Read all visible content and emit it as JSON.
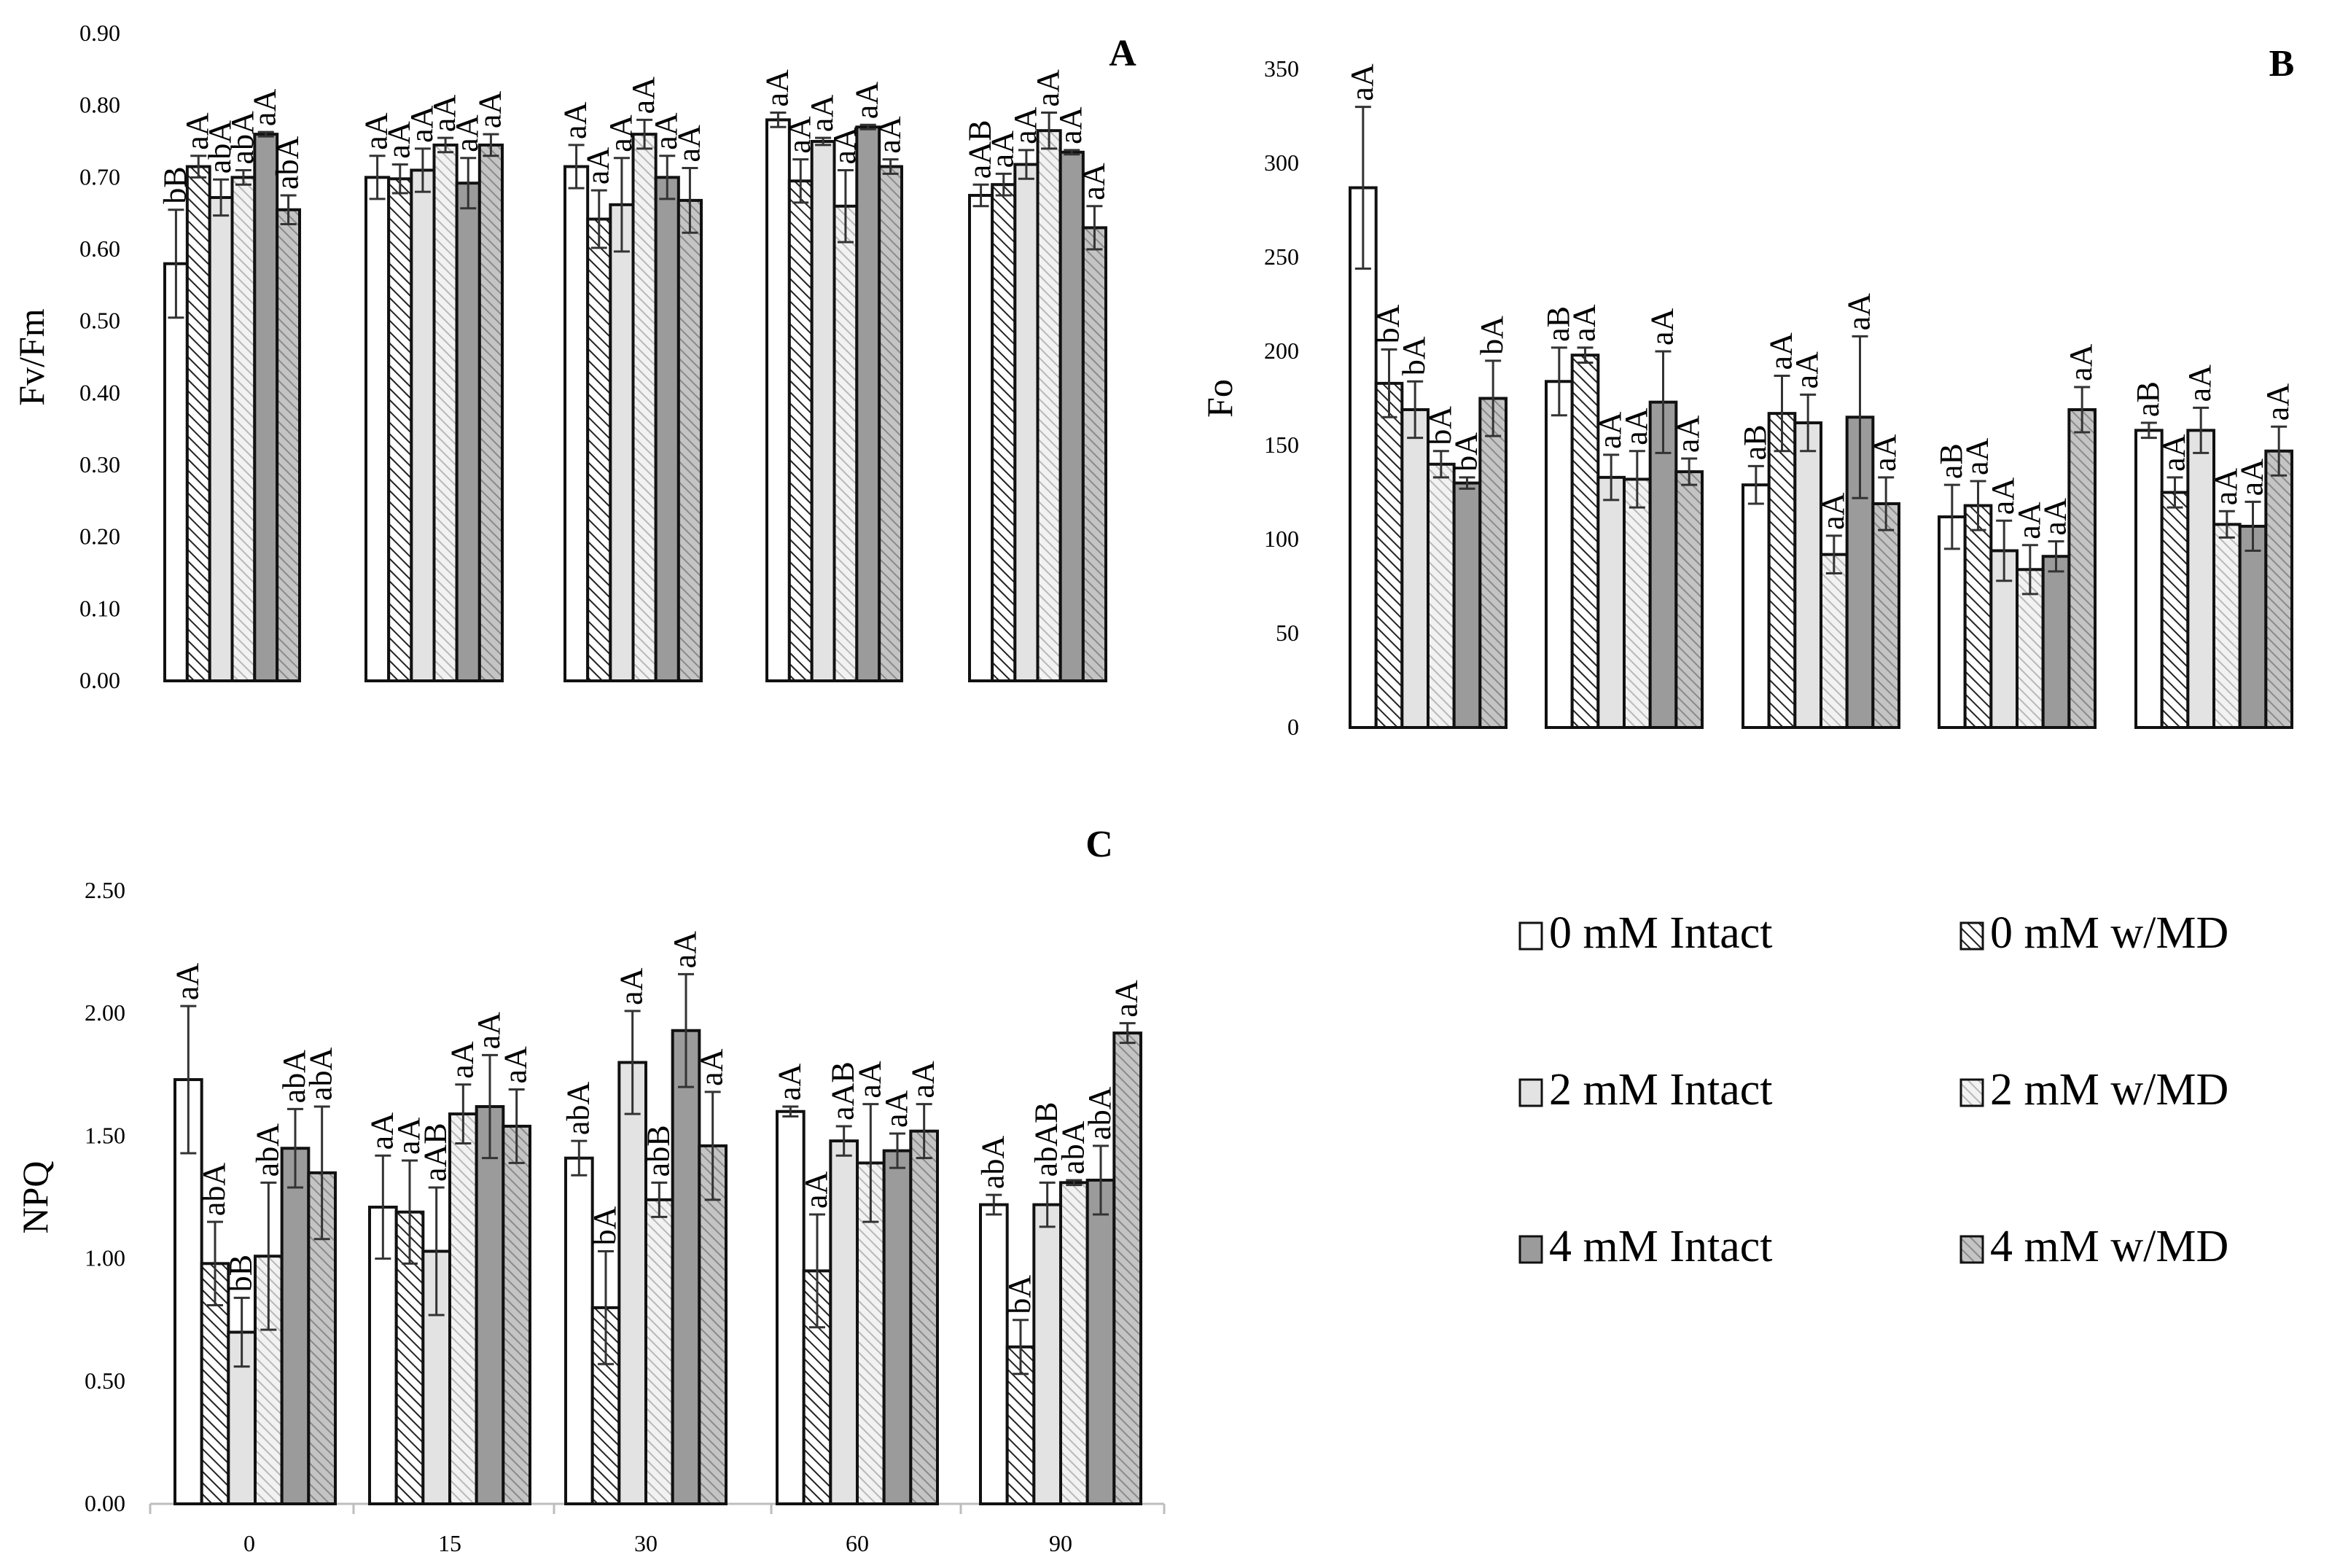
{
  "legend": {
    "items": [
      {
        "label": "0 mM Intact",
        "pattern": "white"
      },
      {
        "label": "0 mM w/MD",
        "pattern": "hatch-dense"
      },
      {
        "label": "2 mM Intact",
        "pattern": "light-gray"
      },
      {
        "label": "2 mM w/MD",
        "pattern": "hatch-light"
      },
      {
        "label": "4 mM Intact",
        "pattern": "dark-gray"
      },
      {
        "label": "4 mM w/MD",
        "pattern": "hatch-gray"
      }
    ]
  },
  "chart_data": [
    {
      "type": "bar",
      "panel": "A",
      "title": "A",
      "ylabel": "Fv/Fm",
      "ylim": [
        0,
        0.9
      ],
      "yticks": [
        "0.00",
        "0.10",
        "0.20",
        "0.30",
        "0.40",
        "0.50",
        "0.60",
        "0.70",
        "0.80",
        "0.90"
      ],
      "categories": [
        "0",
        "15",
        "30",
        "60",
        "90"
      ],
      "series": [
        {
          "name": "0 mM Intact",
          "values": [
            0.58,
            0.7,
            0.715,
            0.78,
            0.675
          ],
          "errors": [
            0.075,
            0.03,
            0.03,
            0.01,
            0.015
          ],
          "letters": [
            "bB",
            "aA",
            "aA",
            "aA",
            "aAB"
          ]
        },
        {
          "name": "0 mM w/MD",
          "values": [
            0.715,
            0.698,
            0.642,
            0.695,
            0.69
          ],
          "errors": [
            0.015,
            0.02,
            0.04,
            0.03,
            0.015
          ],
          "letters": [
            "aA",
            "aA",
            "aA",
            "aA",
            "aA"
          ]
        },
        {
          "name": "2 mM Intact",
          "values": [
            0.672,
            0.71,
            0.662,
            0.75,
            0.718
          ],
          "errors": [
            0.025,
            0.03,
            0.065,
            0.005,
            0.02
          ],
          "letters": [
            "abA",
            "aA",
            "aA",
            "aA",
            "aA"
          ]
        },
        {
          "name": "2 mM w/MD",
          "values": [
            0.7,
            0.745,
            0.76,
            0.66,
            0.765
          ],
          "errors": [
            0.01,
            0.01,
            0.02,
            0.05,
            0.025
          ],
          "letters": [
            "abA",
            "aA",
            "aA",
            "aA",
            "aA"
          ]
        },
        {
          "name": "4 mM Intact",
          "values": [
            0.76,
            0.692,
            0.7,
            0.77,
            0.735
          ],
          "errors": [
            0.003,
            0.035,
            0.03,
            0.003,
            0.003
          ],
          "letters": [
            "aA",
            "aA",
            "aA",
            "aA",
            "aA"
          ]
        },
        {
          "name": "4 mM w/MD",
          "values": [
            0.655,
            0.745,
            0.668,
            0.715,
            0.63
          ],
          "errors": [
            0.02,
            0.015,
            0.045,
            0.01,
            0.03
          ],
          "letters": [
            "abA",
            "aA",
            "aA",
            "aA",
            "aA"
          ]
        }
      ]
    },
    {
      "type": "bar",
      "panel": "B",
      "title": "B",
      "ylabel": "Fo",
      "ylim": [
        0,
        350
      ],
      "yticks": [
        "0",
        "50",
        "100",
        "150",
        "200",
        "250",
        "300",
        "350"
      ],
      "categories": [
        "0",
        "15",
        "30",
        "60",
        "90"
      ],
      "series": [
        {
          "name": "0 mM Intact",
          "values": [
            287,
            184,
            129,
            112,
            158
          ],
          "errors": [
            43,
            18,
            10,
            17,
            4
          ],
          "letters": [
            "aA",
            "aB",
            "aB",
            "aB",
            "aB"
          ]
        },
        {
          "name": "0 mM w/MD",
          "values": [
            183,
            198,
            167,
            118,
            125
          ],
          "errors": [
            18,
            4,
            20,
            13,
            8
          ],
          "letters": [
            "bA",
            "aA",
            "aA",
            "aA",
            "aA"
          ]
        },
        {
          "name": "2 mM Intact",
          "values": [
            169,
            133,
            162,
            94,
            158
          ],
          "errors": [
            15,
            12,
            15,
            16,
            12
          ],
          "letters": [
            "bA",
            "aA",
            "aA",
            "aA",
            "aA"
          ]
        },
        {
          "name": "2 mM w/MD",
          "values": [
            140,
            132,
            92,
            84,
            108
          ],
          "errors": [
            7,
            15,
            10,
            13,
            7
          ],
          "letters": [
            "bA",
            "aA",
            "aA",
            "aA",
            "aA"
          ]
        },
        {
          "name": "4 mM Intact",
          "values": [
            130,
            173,
            165,
            91,
            107
          ],
          "errors": [
            3,
            27,
            43,
            8,
            13
          ],
          "letters": [
            "bA",
            "aA",
            "aA",
            "aA",
            "aA"
          ]
        },
        {
          "name": "4 mM w/MD",
          "values": [
            175,
            136,
            119,
            169,
            147
          ],
          "errors": [
            20,
            7,
            14,
            12,
            13
          ],
          "letters": [
            "bA",
            "aA",
            "aA",
            "aA",
            "aA"
          ]
        }
      ]
    },
    {
      "type": "bar",
      "panel": "C",
      "title": "C",
      "ylabel": "NPQ",
      "ylim": [
        0,
        2.5
      ],
      "yticks": [
        "0.00",
        "0.50",
        "1.00",
        "1.50",
        "2.00",
        "2.50"
      ],
      "categories": [
        "0",
        "15",
        "30",
        "60",
        "90"
      ],
      "series": [
        {
          "name": "0 mM Intact",
          "values": [
            1.73,
            1.21,
            1.41,
            1.6,
            1.22
          ],
          "errors": [
            0.3,
            0.21,
            0.07,
            0.02,
            0.04
          ],
          "letters": [
            "aA",
            "aA",
            "abA",
            "aA",
            "abA"
          ]
        },
        {
          "name": "0 mM w/MD",
          "values": [
            0.98,
            1.19,
            0.8,
            0.95,
            0.64
          ],
          "errors": [
            0.17,
            0.21,
            0.23,
            0.23,
            0.11
          ],
          "letters": [
            "abA",
            "aA",
            "bA",
            "aA",
            "bA"
          ]
        },
        {
          "name": "2 mM Intact",
          "values": [
            0.7,
            1.03,
            1.8,
            1.48,
            1.22
          ],
          "errors": [
            0.14,
            0.26,
            0.21,
            0.06,
            0.09
          ],
          "letters": [
            "bB",
            "aAB",
            "aA",
            "aAB",
            "abAB"
          ]
        },
        {
          "name": "2 mM w/MD",
          "values": [
            1.01,
            1.59,
            1.24,
            1.39,
            1.31
          ],
          "errors": [
            0.3,
            0.12,
            0.07,
            0.24,
            0.01
          ],
          "letters": [
            "abA",
            "aA",
            "abB",
            "aA",
            "abA"
          ]
        },
        {
          "name": "4 mM Intact",
          "values": [
            1.45,
            1.62,
            1.93,
            1.44,
            1.32
          ],
          "errors": [
            0.16,
            0.21,
            0.23,
            0.07,
            0.14
          ],
          "letters": [
            "abA",
            "aA",
            "aA",
            "aA",
            "abA"
          ]
        },
        {
          "name": "4 mM w/MD",
          "values": [
            1.35,
            1.54,
            1.46,
            1.52,
            1.92
          ],
          "errors": [
            0.27,
            0.15,
            0.22,
            0.11,
            0.04
          ],
          "letters": [
            "abA",
            "aA",
            "aA",
            "aA",
            "aA"
          ]
        }
      ]
    }
  ]
}
